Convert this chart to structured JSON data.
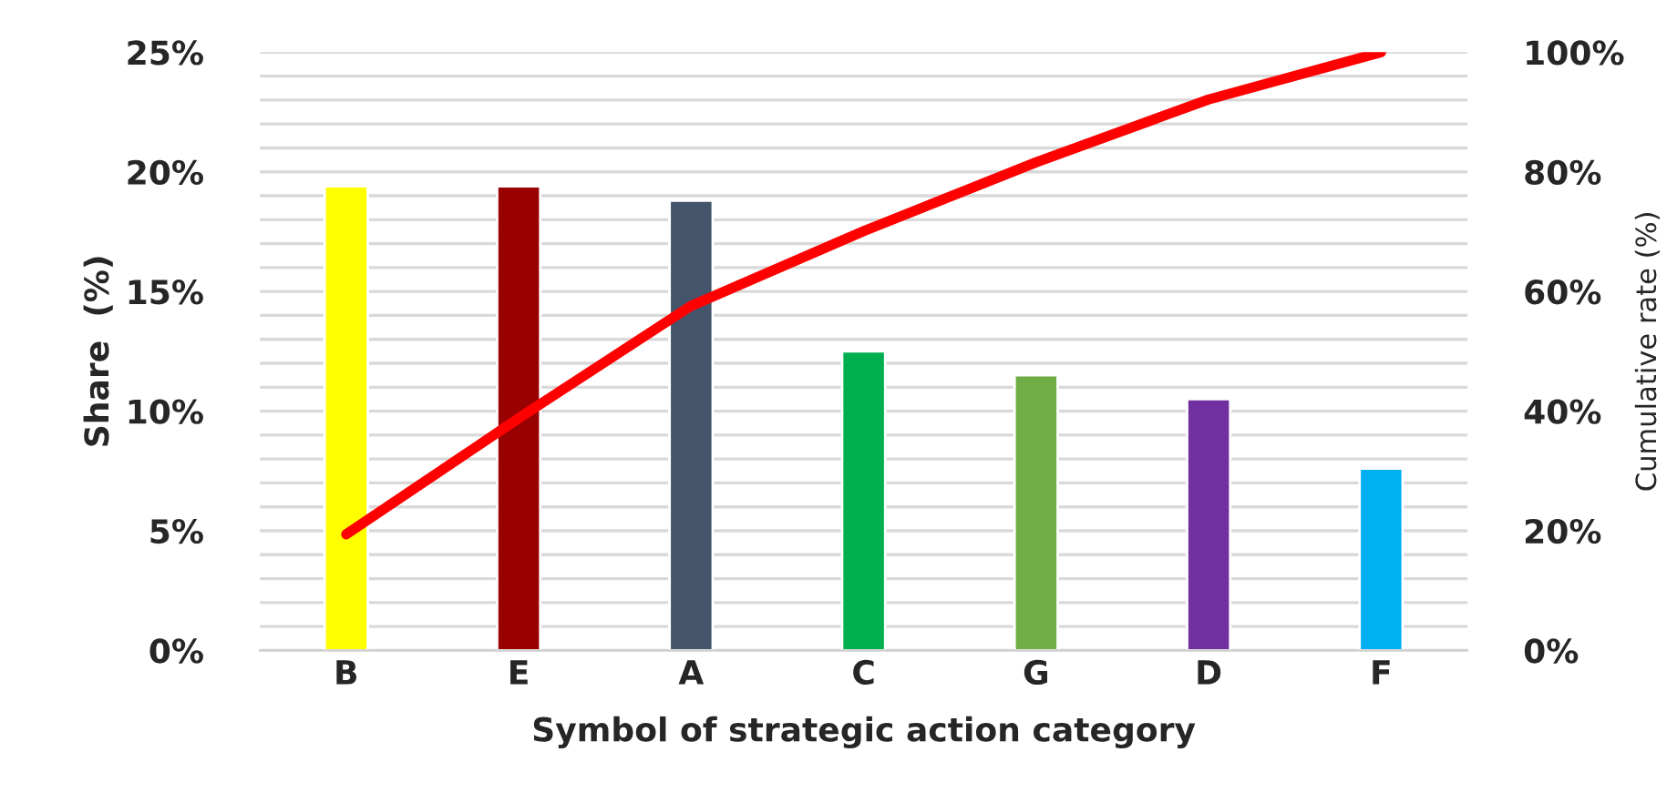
{
  "chart_data": {
    "type": "bar",
    "xlabel": "Symbol of strategic action category",
    "ylabel": "Share  (%)",
    "y2label": "Cumulative rate (%)",
    "categories": [
      "B",
      "E",
      "A",
      "C",
      "G",
      "D",
      "F"
    ],
    "series": [
      {
        "colors": [
          "#ffff00",
          "#990000",
          "#44546a",
          "#00b050",
          "#70ad47",
          "#7030a0",
          "#00b0f0"
        ],
        "values": [
          19.4,
          19.4,
          18.8,
          12.5,
          11.5,
          10.5,
          7.6
        ]
      },
      {
        "type": "line",
        "axis": "y2",
        "color": "#ff0000",
        "values": [
          19.4,
          38.8,
          57.6,
          70.1,
          81.6,
          92.1,
          100
        ]
      }
    ],
    "ylim": [
      0,
      25
    ],
    "yticks": [
      {
        "value": 0,
        "label": "0%"
      },
      {
        "value": 1,
        "label": null
      },
      {
        "value": 2,
        "label": null
      },
      {
        "value": 3,
        "label": null
      },
      {
        "value": 4,
        "label": null
      },
      {
        "value": 5,
        "label": "5%"
      },
      {
        "value": 6,
        "label": null
      },
      {
        "value": 7,
        "label": null
      },
      {
        "value": 8,
        "label": null
      },
      {
        "value": 9,
        "label": null
      },
      {
        "value": 10,
        "label": "10%"
      },
      {
        "value": 11,
        "label": null
      },
      {
        "value": 12,
        "label": null
      },
      {
        "value": 13,
        "label": null
      },
      {
        "value": 14,
        "label": null
      },
      {
        "value": 15,
        "label": "15%"
      },
      {
        "value": 16,
        "label": null
      },
      {
        "value": 17,
        "label": null
      },
      {
        "value": 18,
        "label": null
      },
      {
        "value": 19,
        "label": null
      },
      {
        "value": 20,
        "label": "20%"
      },
      {
        "value": 21,
        "label": null
      },
      {
        "value": 22,
        "label": null
      },
      {
        "value": 23,
        "label": null
      },
      {
        "value": 24,
        "label": null
      },
      {
        "value": 25,
        "label": "25%"
      }
    ],
    "y2lim": [
      0,
      100
    ],
    "y2ticks": [
      {
        "value": 0,
        "label": "0%"
      },
      {
        "value": 20,
        "label": "20%"
      },
      {
        "value": 40,
        "label": "40%"
      },
      {
        "value": 60,
        "label": "60%"
      },
      {
        "value": 80,
        "label": "80%"
      },
      {
        "value": 100,
        "label": "100%"
      }
    ],
    "grid": "y",
    "legend": false
  }
}
